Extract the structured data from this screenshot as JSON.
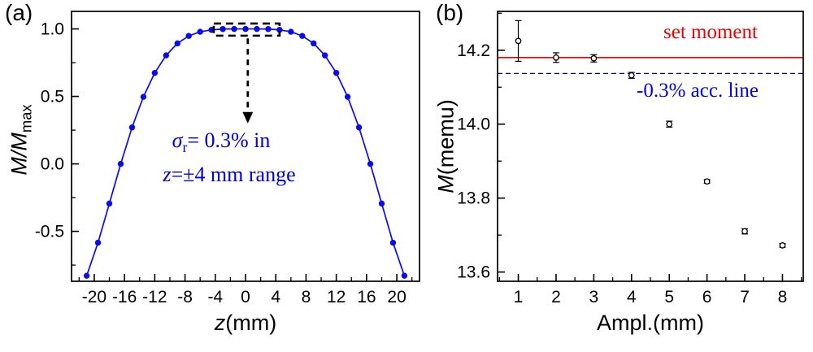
{
  "figure": {
    "background": "#ffffff"
  },
  "chart_data": [
    {
      "panel": "a",
      "panel_label": "(a)",
      "type": "line",
      "title": "",
      "xlabel": "z(mm)",
      "xlabel_parts": {
        "italic": "z",
        "rest": "(mm)"
      },
      "ylabel": "M/Mmax",
      "ylabel_parts": {
        "italic": "M/M",
        "sub": "max"
      },
      "xlim": [
        -23,
        23
      ],
      "ylim": [
        -0.87,
        1.13
      ],
      "x_ticks": [
        -20,
        -16,
        -12,
        -8,
        -4,
        0,
        4,
        8,
        12,
        16,
        20
      ],
      "x_tick_labels": [
        "-20",
        "-16",
        "-12",
        "-8",
        "-4",
        "0",
        "4",
        "8",
        "12",
        "16",
        "20"
      ],
      "x_minor_step": 2,
      "y_ticks": [
        -0.5,
        0,
        0.5,
        1
      ],
      "y_tick_labels": [
        "-0.5",
        "0.0",
        "0.5",
        "1.0"
      ],
      "y_minor_step": 0.25,
      "grid": false,
      "series": [
        {
          "name": "normalized-moment-vs-position",
          "color": "#0a0af0",
          "marker": "filled-circle",
          "x": [
            -21,
            -19.5,
            -18,
            -16.5,
            -15,
            -13.5,
            -12,
            -10.5,
            -9,
            -7.5,
            -6,
            -4.5,
            -3,
            -1.5,
            0,
            1.5,
            3,
            4.5,
            6,
            7.5,
            9,
            10.5,
            12,
            13.5,
            15,
            16.5,
            18,
            19.5,
            21
          ],
          "y": [
            -0.829,
            -0.584,
            -0.294,
            0,
            0.27,
            0.497,
            0.674,
            0.804,
            0.893,
            0.948,
            0.979,
            0.993,
            0.999,
            1,
            1,
            1,
            0.999,
            0.993,
            0.979,
            0.948,
            0.893,
            0.804,
            0.674,
            0.497,
            0.27,
            0,
            -0.294,
            -0.584,
            -0.829
          ]
        }
      ],
      "annotation": {
        "dashed_box": {
          "x_range": [
            -4.2,
            4.5
          ],
          "y_range": [
            0.95,
            1.04
          ]
        },
        "dashed_arrow": {
          "x": 0.3,
          "y_from": 0.93,
          "y_to": 0.3
        },
        "line1": {
          "sigma": "σ",
          "sub": "r",
          "rest": "= 0.3% in"
        },
        "line2": {
          "italic": "z",
          "rest": "=±4 mm range"
        },
        "text_color": "#0000e0"
      }
    },
    {
      "panel": "b",
      "panel_label": "(b)",
      "type": "scatter",
      "title": "",
      "xlabel": "Ampl.(mm)",
      "ylabel": "M(memu)",
      "ylabel_parts": {
        "italic": "M",
        "rest": "(memu)"
      },
      "xlim": [
        0.45,
        8.55
      ],
      "ylim": [
        13.575,
        14.305
      ],
      "x_ticks": [
        1,
        2,
        3,
        4,
        5,
        6,
        7,
        8
      ],
      "x_tick_labels": [
        "1",
        "2",
        "3",
        "4",
        "5",
        "6",
        "7",
        "8"
      ],
      "x_minor_step": 0.5,
      "y_ticks": [
        13.6,
        13.8,
        14,
        14.2
      ],
      "y_tick_labels": [
        "13.6",
        "13.8",
        "14.0",
        "14.2"
      ],
      "y_minor_step": 0.1,
      "grid": false,
      "points": {
        "marker": "open-circle",
        "x": [
          1,
          2,
          3,
          4,
          5,
          6,
          7,
          8
        ],
        "y": [
          14.225,
          14.18,
          14.178,
          14.132,
          14.0,
          13.845,
          13.71,
          13.672
        ],
        "yerr": [
          0.055,
          0.013,
          0.01,
          0.008,
          0.008,
          0.005,
          0.007,
          0.005
        ]
      },
      "ref_lines": [
        {
          "label": "set moment",
          "value": 14.18,
          "style": "solid",
          "color": "#f00000",
          "label_color": "#f00000"
        },
        {
          "label": "-0.3% acc. line",
          "value": 14.137,
          "style": "dashed",
          "color": "#000099",
          "label_color": "#0000e0"
        }
      ]
    }
  ]
}
